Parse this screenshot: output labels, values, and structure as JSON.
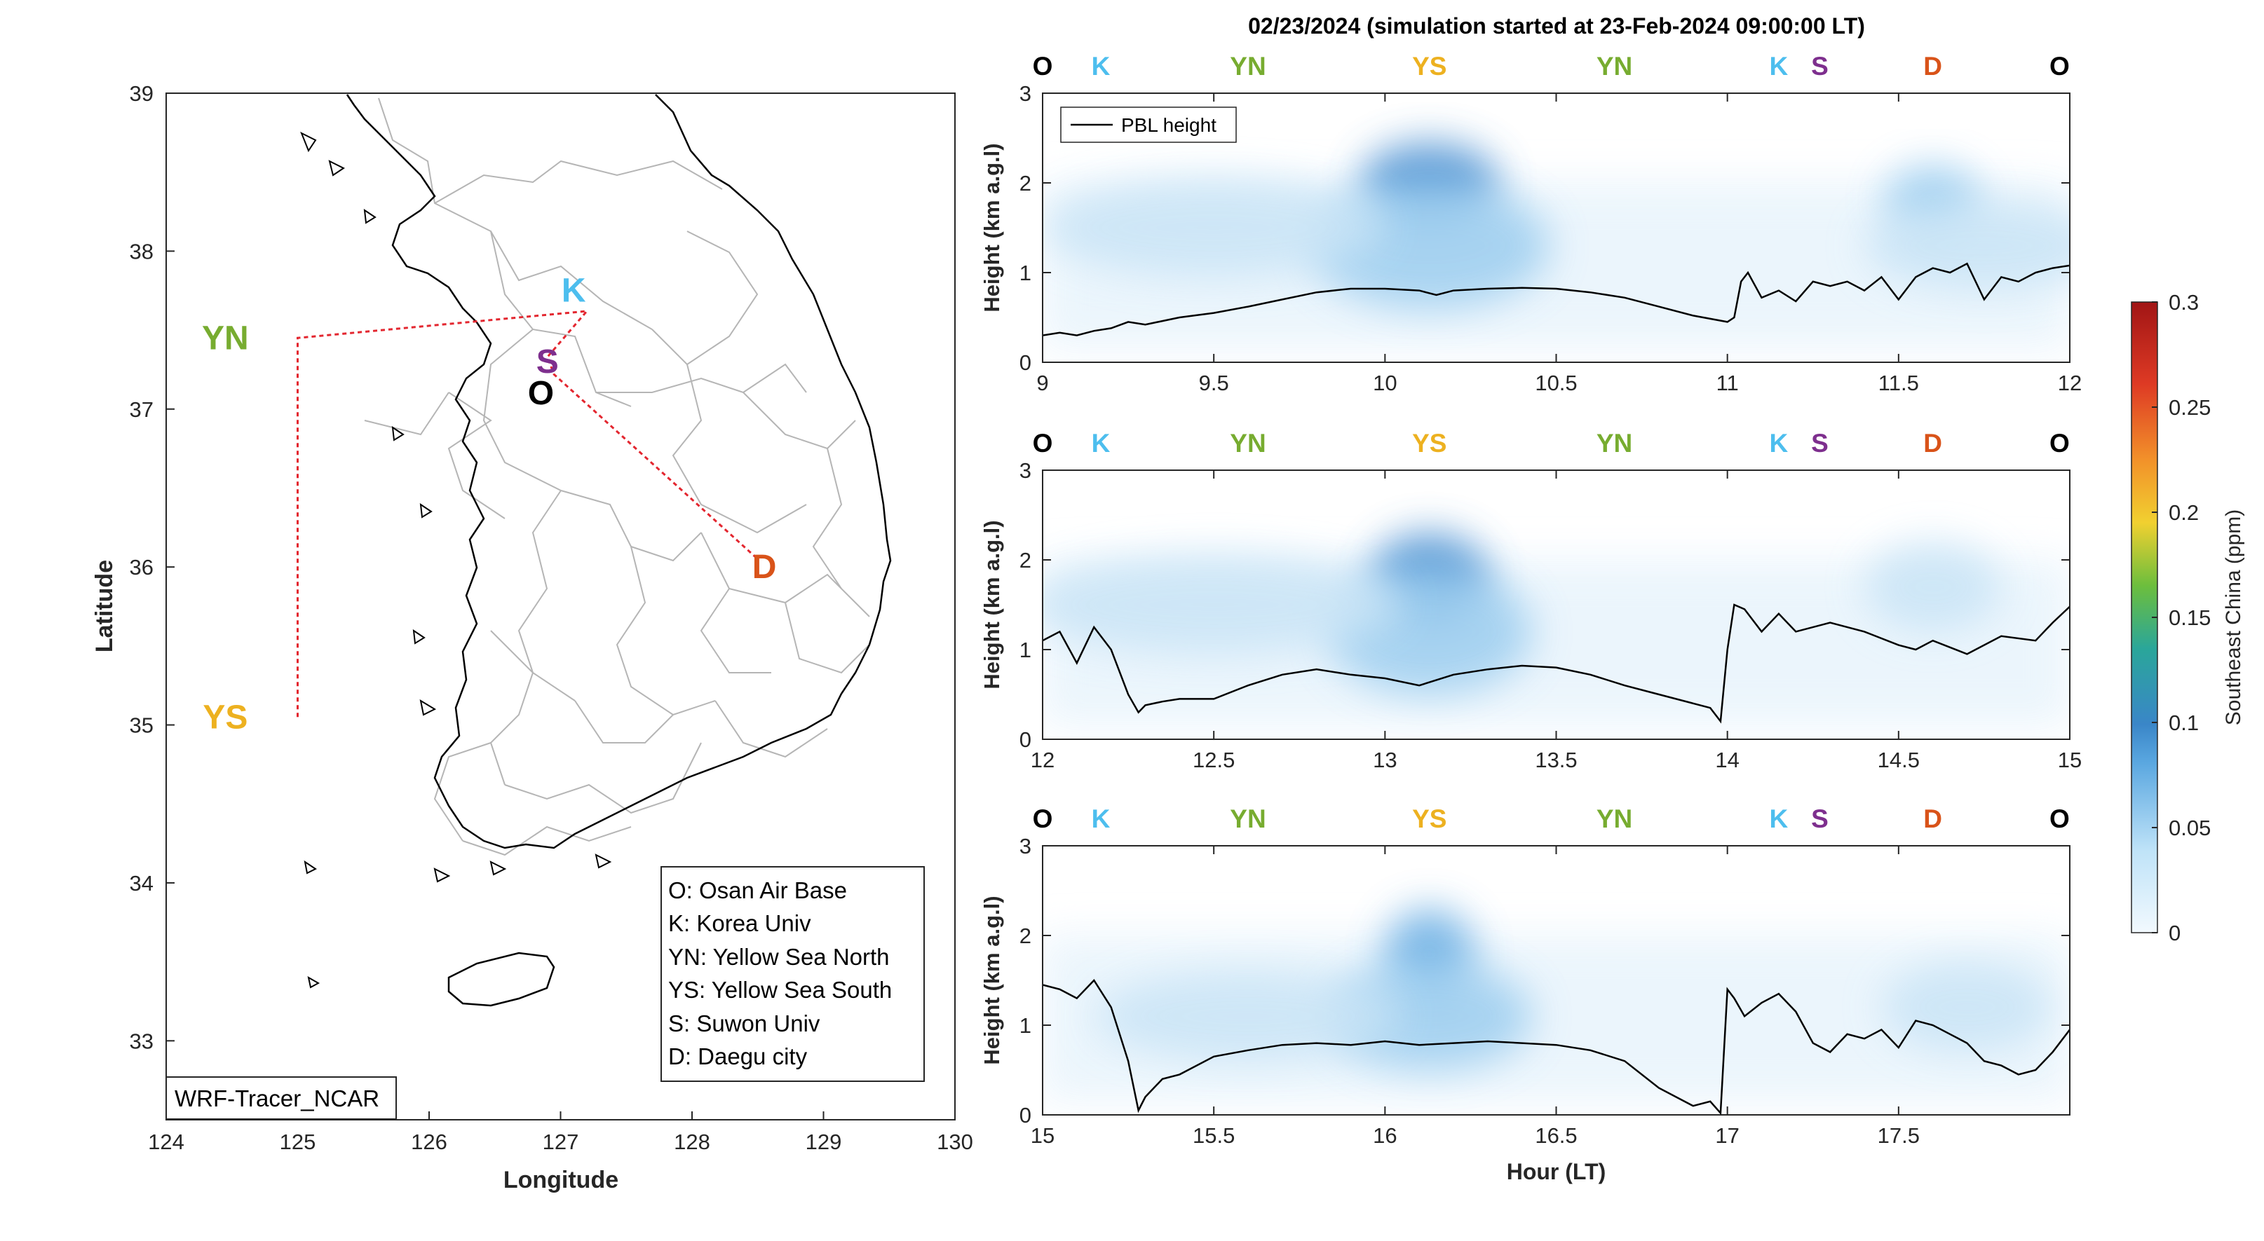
{
  "title": "02/23/2024 (simulation started at 23-Feb-2024 09:00:00 LT)",
  "map": {
    "xlabel": "Longitude",
    "ylabel": "Latitude",
    "xlim": [
      124,
      130
    ],
    "ylim": [
      32.5,
      39
    ],
    "x_ticks": [
      "124",
      "125",
      "126",
      "127",
      "128",
      "129",
      "130"
    ],
    "y_ticks": [
      "33",
      "34",
      "35",
      "36",
      "37",
      "38",
      "39"
    ],
    "site_labels": [
      {
        "code": "YN",
        "lon": 124.45,
        "lat": 37.45,
        "color": "#77ac30"
      },
      {
        "code": "YS",
        "lon": 124.45,
        "lat": 35.05,
        "color": "#edb120"
      },
      {
        "code": "K",
        "lon": 127.1,
        "lat": 37.75,
        "color": "#4dbeee"
      },
      {
        "code": "S",
        "lon": 126.9,
        "lat": 37.3,
        "color": "#7e2f8e"
      },
      {
        "code": "O",
        "lon": 126.85,
        "lat": 37.1,
        "color": "#000000"
      },
      {
        "code": "D",
        "lon": 128.55,
        "lat": 36.0,
        "color": "#d95319"
      }
    ],
    "legend": [
      "O: Osan Air Base",
      "K: Korea Univ",
      "YN: Yellow Sea North",
      "YS: Yellow Sea South",
      "S: Suwon Univ",
      "D: Daegu city"
    ],
    "model_label": "WRF-Tracer_NCAR"
  },
  "chart_data": [
    {
      "type": "heatmap",
      "panel": 1,
      "xlim": [
        9,
        12
      ],
      "ylim": [
        0,
        3
      ],
      "x_ticks": [
        "9",
        "9.5",
        "10",
        "10.5",
        "11",
        "11.5",
        "12"
      ],
      "y_ticks": [
        "0",
        "1",
        "2",
        "3"
      ],
      "ylabel": "Height (km a.g.l)",
      "legend": "PBL height",
      "site_markers": [
        {
          "code": "O",
          "x": 9.0
        },
        {
          "code": "K",
          "x": 9.17
        },
        {
          "code": "YN",
          "x": 9.6
        },
        {
          "code": "YS",
          "x": 10.13
        },
        {
          "code": "YN",
          "x": 10.67
        },
        {
          "code": "K",
          "x": 11.15
        },
        {
          "code": "S",
          "x": 11.27
        },
        {
          "code": "D",
          "x": 11.6
        },
        {
          "code": "O",
          "x": 11.97
        }
      ],
      "plumes": [
        {
          "x": 10.13,
          "y": 2.0,
          "sx": 0.2,
          "sy": 0.45,
          "c": 0.09
        },
        {
          "x": 10.13,
          "y": 1.3,
          "sx": 0.35,
          "sy": 0.7,
          "c": 0.03
        },
        {
          "x": 9.5,
          "y": 1.5,
          "sx": 0.5,
          "sy": 0.55,
          "c": 0.018
        },
        {
          "x": 11.6,
          "y": 1.8,
          "sx": 0.14,
          "sy": 0.4,
          "c": 0.04
        },
        {
          "x": 11.75,
          "y": 1.3,
          "sx": 0.35,
          "sy": 0.5,
          "c": 0.015
        }
      ],
      "pbl": {
        "x": [
          9.0,
          9.05,
          9.1,
          9.15,
          9.2,
          9.25,
          9.3,
          9.4,
          9.5,
          9.6,
          9.7,
          9.8,
          9.9,
          10.0,
          10.1,
          10.15,
          10.2,
          10.3,
          10.4,
          10.5,
          10.6,
          10.7,
          10.8,
          10.9,
          11.0,
          11.02,
          11.04,
          11.06,
          11.1,
          11.15,
          11.2,
          11.25,
          11.3,
          11.35,
          11.4,
          11.45,
          11.5,
          11.55,
          11.6,
          11.65,
          11.7,
          11.75,
          11.8,
          11.85,
          11.9,
          11.95,
          12.0
        ],
        "y": [
          0.3,
          0.33,
          0.3,
          0.35,
          0.38,
          0.45,
          0.42,
          0.5,
          0.55,
          0.62,
          0.7,
          0.78,
          0.82,
          0.82,
          0.8,
          0.75,
          0.8,
          0.82,
          0.83,
          0.82,
          0.78,
          0.72,
          0.62,
          0.52,
          0.45,
          0.5,
          0.9,
          1.0,
          0.72,
          0.8,
          0.68,
          0.9,
          0.85,
          0.9,
          0.8,
          0.95,
          0.7,
          0.95,
          1.05,
          1.0,
          1.1,
          0.7,
          0.95,
          0.9,
          1.0,
          1.05,
          1.08
        ]
      }
    },
    {
      "type": "heatmap",
      "panel": 2,
      "xlim": [
        12,
        15
      ],
      "ylim": [
        0,
        3
      ],
      "x_ticks": [
        "12",
        "12.5",
        "13",
        "13.5",
        "14",
        "14.5",
        "15"
      ],
      "y_ticks": [
        "0",
        "1",
        "2",
        "3"
      ],
      "ylabel": "Height (km a.g.l)",
      "site_markers": [
        {
          "code": "O",
          "x": 12.0
        },
        {
          "code": "K",
          "x": 12.17
        },
        {
          "code": "YN",
          "x": 12.6
        },
        {
          "code": "YS",
          "x": 13.13
        },
        {
          "code": "YN",
          "x": 13.67
        },
        {
          "code": "K",
          "x": 14.15
        },
        {
          "code": "S",
          "x": 14.27
        },
        {
          "code": "D",
          "x": 14.6
        },
        {
          "code": "O",
          "x": 14.97
        }
      ],
      "plumes": [
        {
          "x": 13.13,
          "y": 1.8,
          "sx": 0.17,
          "sy": 0.5,
          "c": 0.085
        },
        {
          "x": 13.13,
          "y": 1.2,
          "sx": 0.3,
          "sy": 0.7,
          "c": 0.03
        },
        {
          "x": 12.5,
          "y": 1.5,
          "sx": 0.55,
          "sy": 0.55,
          "c": 0.015
        },
        {
          "x": 14.6,
          "y": 1.7,
          "sx": 0.2,
          "sy": 0.5,
          "c": 0.02
        }
      ],
      "pbl": {
        "x": [
          12.0,
          12.05,
          12.1,
          12.15,
          12.2,
          12.25,
          12.28,
          12.3,
          12.35,
          12.4,
          12.5,
          12.6,
          12.7,
          12.8,
          12.9,
          13.0,
          13.1,
          13.2,
          13.3,
          13.4,
          13.5,
          13.6,
          13.7,
          13.8,
          13.9,
          13.95,
          13.98,
          14.0,
          14.02,
          14.05,
          14.1,
          14.15,
          14.2,
          14.3,
          14.4,
          14.5,
          14.55,
          14.6,
          14.7,
          14.8,
          14.9,
          14.95,
          15.0
        ],
        "y": [
          1.1,
          1.2,
          0.85,
          1.25,
          1.0,
          0.5,
          0.3,
          0.38,
          0.42,
          0.45,
          0.45,
          0.6,
          0.72,
          0.78,
          0.72,
          0.68,
          0.6,
          0.72,
          0.78,
          0.82,
          0.8,
          0.72,
          0.6,
          0.5,
          0.4,
          0.35,
          0.2,
          1.0,
          1.5,
          1.45,
          1.2,
          1.4,
          1.2,
          1.3,
          1.2,
          1.05,
          1.0,
          1.1,
          0.95,
          1.15,
          1.1,
          1.3,
          1.48
        ]
      }
    },
    {
      "type": "heatmap",
      "panel": 3,
      "xlim": [
        15,
        18
      ],
      "ylim": [
        0,
        3
      ],
      "x_ticks": [
        "15",
        "15.5",
        "16",
        "16.5",
        "17",
        "17.5"
      ],
      "y_ticks": [
        "0",
        "1",
        "2",
        "3"
      ],
      "ylabel": "Height (km a.g.l)",
      "xlabel": "Hour (LT)",
      "site_markers": [
        {
          "code": "O",
          "x": 15.0
        },
        {
          "code": "K",
          "x": 15.17
        },
        {
          "code": "YN",
          "x": 15.6
        },
        {
          "code": "YS",
          "x": 16.13
        },
        {
          "code": "YN",
          "x": 16.67
        },
        {
          "code": "K",
          "x": 17.15
        },
        {
          "code": "S",
          "x": 17.27
        },
        {
          "code": "D",
          "x": 17.6
        },
        {
          "code": "O",
          "x": 17.97
        }
      ],
      "plumes": [
        {
          "x": 16.13,
          "y": 1.8,
          "sx": 0.13,
          "sy": 0.5,
          "c": 0.07
        },
        {
          "x": 16.13,
          "y": 1.1,
          "sx": 0.3,
          "sy": 0.6,
          "c": 0.025
        },
        {
          "x": 15.6,
          "y": 1.1,
          "sx": 0.45,
          "sy": 0.5,
          "c": 0.012
        },
        {
          "x": 17.7,
          "y": 1.2,
          "sx": 0.25,
          "sy": 0.5,
          "c": 0.008
        }
      ],
      "pbl": {
        "x": [
          15.0,
          15.05,
          15.1,
          15.15,
          15.2,
          15.25,
          15.28,
          15.3,
          15.35,
          15.4,
          15.5,
          15.6,
          15.7,
          15.8,
          15.9,
          16.0,
          16.1,
          16.2,
          16.3,
          16.4,
          16.5,
          16.6,
          16.7,
          16.8,
          16.9,
          16.95,
          16.98,
          17.0,
          17.02,
          17.05,
          17.1,
          17.15,
          17.2,
          17.25,
          17.3,
          17.35,
          17.4,
          17.45,
          17.5,
          17.55,
          17.6,
          17.65,
          17.7,
          17.75,
          17.8,
          17.85,
          17.9,
          17.95,
          18.0
        ],
        "y": [
          1.45,
          1.4,
          1.3,
          1.5,
          1.2,
          0.6,
          0.05,
          0.2,
          0.4,
          0.45,
          0.65,
          0.72,
          0.78,
          0.8,
          0.78,
          0.82,
          0.78,
          0.8,
          0.82,
          0.8,
          0.78,
          0.72,
          0.6,
          0.3,
          0.1,
          0.15,
          0.02,
          1.4,
          1.3,
          1.1,
          1.25,
          1.35,
          1.15,
          0.8,
          0.7,
          0.9,
          0.85,
          0.95,
          0.75,
          1.05,
          1.0,
          0.9,
          0.8,
          0.6,
          0.55,
          0.45,
          0.5,
          0.7,
          0.95
        ]
      }
    }
  ],
  "colorbar": {
    "label": "Southeast China (ppm)",
    "range": [
      0,
      0.3
    ],
    "ticks": [
      "0",
      "0.05",
      "0.1",
      "0.15",
      "0.2",
      "0.25",
      "0.3"
    ]
  },
  "colors": {
    "site_O": "#000000",
    "site_K": "#4dbeee",
    "site_YN": "#77ac30",
    "site_YS": "#edb120",
    "site_S": "#7e2f8e",
    "site_D": "#d95319",
    "track": "#e3262f"
  }
}
